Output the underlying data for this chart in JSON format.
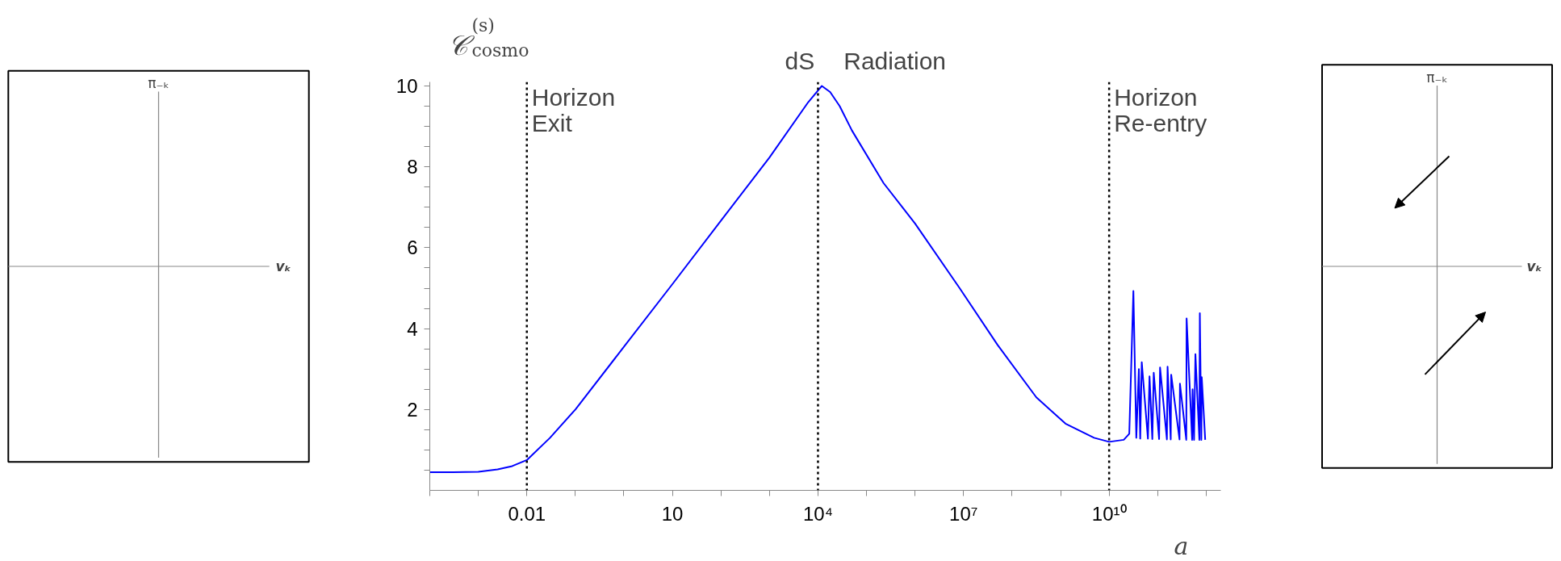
{
  "chart_data": {
    "type": "line",
    "xlabel": "a",
    "ylabel": "𝒞$^{(s)}$$_{cosmo}$",
    "log": "x",
    "x": [
      0.0001,
      0.0003,
      0.001,
      0.0025,
      0.005,
      0.01,
      0.03,
      0.1,
      1,
      10,
      100,
      1000,
      6300,
      12000,
      17800,
      28000,
      50000,
      224000,
      1000000,
      8300000,
      50000000,
      316000000,
      1260000000,
      4900000000,
      10000000000,
      20000000000,
      26000000000,
      31600000000,
      36300000000,
      41000000000,
      43700000000,
      47000000000,
      63000000000,
      68000000000,
      77600000000,
      83000000000,
      107000000000,
      112000000000,
      155000000000,
      160000000000,
      186000000000,
      190000000000,
      282000000000,
      288000000000,
      389000000000,
      395000000000,
      513000000000,
      525000000000,
      562000000000,
      600000000000,
      724000000000,
      740000000000,
      794000000000,
      810000000000,
      955000000000
    ],
    "series": [
      {
        "color": "#0000ff",
        "values": [
          0.45,
          0.45,
          0.46,
          0.52,
          0.6,
          0.75,
          1.3,
          2.0,
          3.55,
          5.1,
          6.67,
          8.23,
          9.6,
          10.0,
          9.85,
          9.5,
          8.9,
          7.6,
          6.6,
          5.0,
          3.6,
          2.3,
          1.65,
          1.3,
          1.2,
          1.25,
          1.4,
          4.93,
          1.3,
          3.0,
          1.28,
          3.17,
          1.28,
          2.82,
          1.27,
          2.91,
          1.27,
          3.04,
          1.26,
          3.06,
          1.26,
          2.86,
          1.26,
          2.64,
          1.25,
          4.25,
          1.25,
          2.5,
          1.25,
          3.37,
          1.25,
          4.38,
          1.25,
          2.8,
          1.25
        ]
      }
    ],
    "xlim": [
      0.0001,
      2000000000000
    ],
    "ylim": [
      0,
      10.1
    ],
    "xticks": [
      {
        "value": 0.0001,
        "label": null
      },
      {
        "value": 0.001,
        "label": null
      },
      0.01,
      {
        "value": 0.1,
        "label": null
      },
      {
        "value": 1,
        "label": null
      },
      10,
      {
        "value": 100,
        "label": null
      },
      {
        "value": 1000,
        "label": null
      },
      {
        "value": 10000,
        "label": "10⁴"
      },
      {
        "value": 100000,
        "label": null
      },
      {
        "value": 1000000,
        "label": null
      },
      {
        "value": 10000000,
        "label": "10⁷"
      },
      {
        "value": 100000000,
        "label": null
      },
      {
        "value": 1000000000,
        "label": null
      },
      {
        "value": 10000000000,
        "label": "10¹⁰"
      },
      {
        "value": 100000000000,
        "label": null
      },
      {
        "value": 1000000000000,
        "label": null
      }
    ],
    "yticks": [
      {
        "value": 0.5,
        "label": null
      },
      {
        "value": 1,
        "label": null
      },
      {
        "value": 1.5,
        "label": null
      },
      2,
      {
        "value": 2.5,
        "label": null
      },
      {
        "value": 3,
        "label": null
      },
      {
        "value": 3.5,
        "label": null
      },
      4,
      {
        "value": 4.5,
        "label": null
      },
      {
        "value": 5,
        "label": null
      },
      {
        "value": 5.5,
        "label": null
      },
      6,
      {
        "value": 6.5,
        "label": null
      },
      {
        "value": 7,
        "label": null
      },
      {
        "value": 7.5,
        "label": null
      },
      8,
      {
        "value": 8.5,
        "label": null
      },
      {
        "value": 9,
        "label": null
      },
      {
        "value": 9.5,
        "label": null
      },
      10
    ],
    "grid": false,
    "marker": "none",
    "line_style": "solid",
    "ref_lines": [
      {
        "axis": "x",
        "value": 0.01,
        "label": "Horizon\nExit",
        "color": "#000000",
        "line_style": "dotted"
      },
      {
        "axis": "x",
        "value": 10000,
        "label": null,
        "color": "#000000",
        "line_style": "dotted"
      },
      {
        "axis": "x",
        "value": 10000000000,
        "label": "Horizon\nRe-entry",
        "color": "#000000",
        "line_style": "dotted"
      }
    ],
    "annotations": [
      "dS",
      "Radiation",
      "π₋ₖ",
      "vₖ",
      "π₋ₖ",
      "vₖ"
    ]
  }
}
